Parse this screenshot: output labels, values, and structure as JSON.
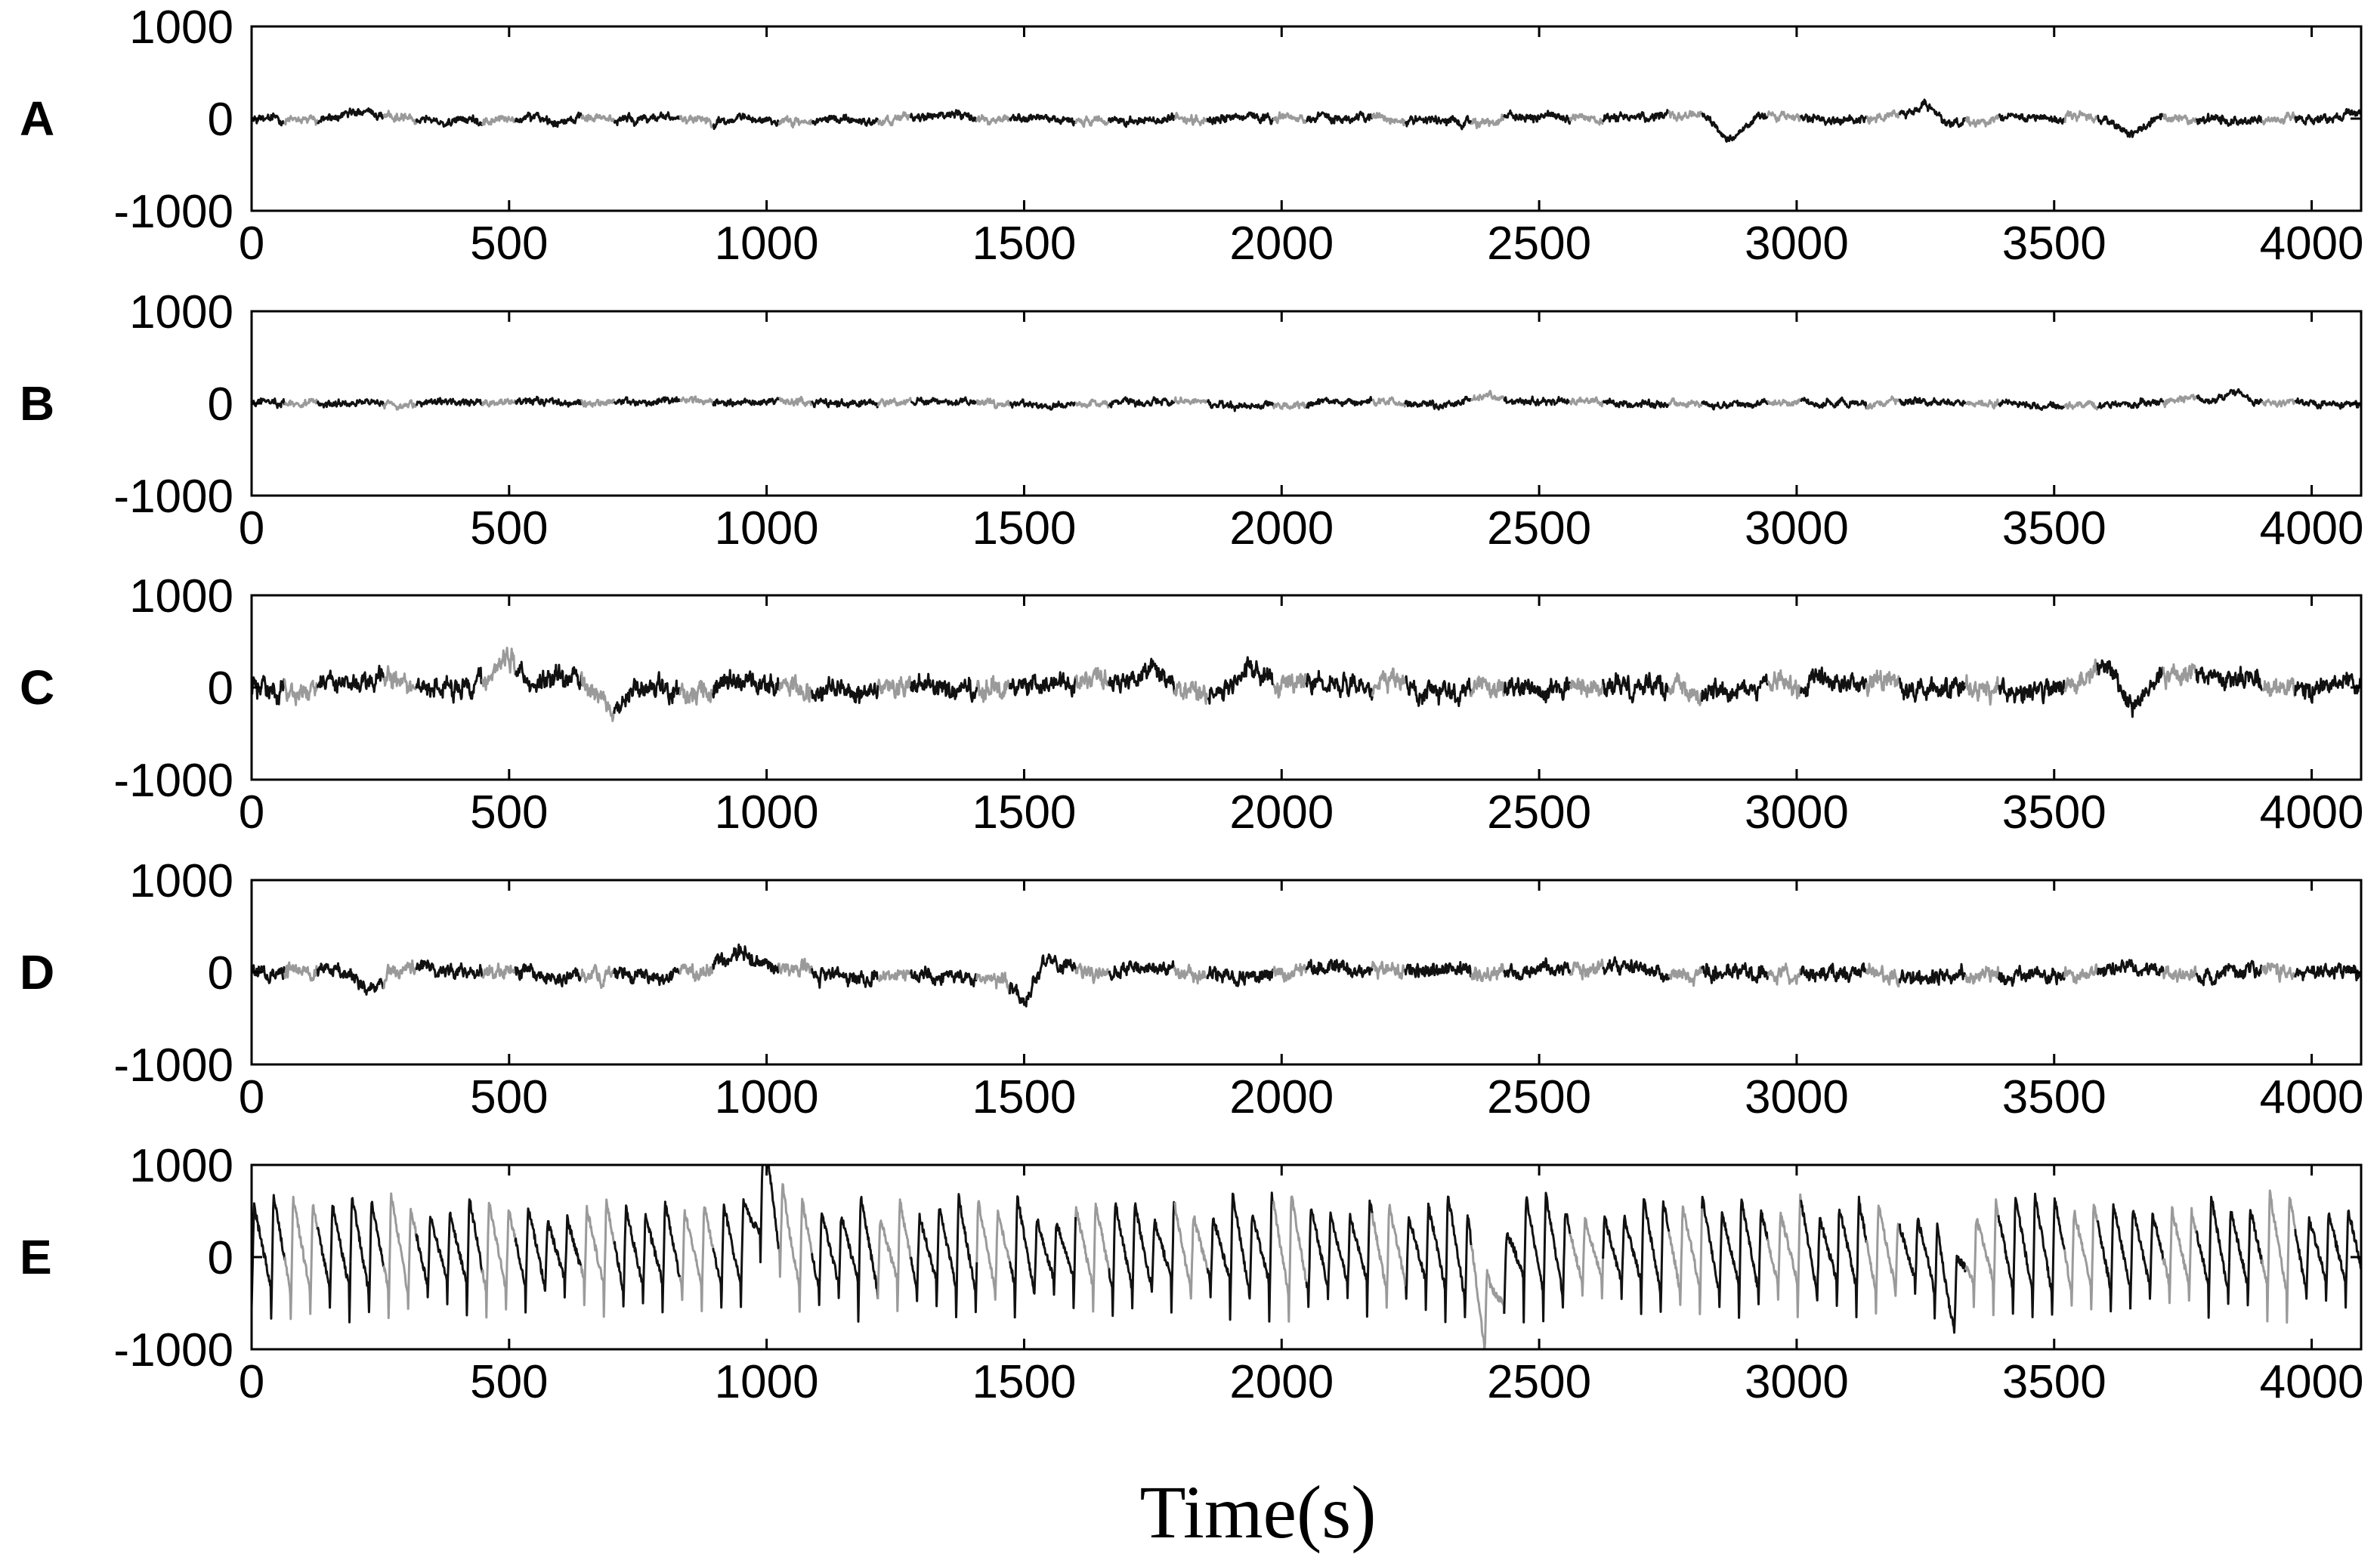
{
  "chart_data": [
    {
      "type": "line",
      "panel_label": "A",
      "xlim": [
        0,
        4096
      ],
      "ylim": [
        -1000,
        1000
      ],
      "xticks": [
        "0",
        "500",
        "1000",
        "1500",
        "2000",
        "2500",
        "3000",
        "3500",
        "4000"
      ],
      "yticks": [
        "1000",
        "0",
        "-1000"
      ],
      "amplitude_envelope": 150,
      "features": [
        {
          "x": 2870,
          "y": -200
        },
        {
          "x": 3250,
          "y": 150
        },
        {
          "x": 3650,
          "y": -180
        }
      ]
    },
    {
      "type": "line",
      "panel_label": "B",
      "xlim": [
        0,
        4096
      ],
      "ylim": [
        -1000,
        1000
      ],
      "xticks": [
        "0",
        "500",
        "1000",
        "1500",
        "2000",
        "2500",
        "3000",
        "3500",
        "4000"
      ],
      "yticks": [
        "1000",
        "0",
        "-1000"
      ],
      "amplitude_envelope": 120,
      "features": [
        {
          "x": 2400,
          "y": 100
        },
        {
          "x": 3850,
          "y": 100
        }
      ]
    },
    {
      "type": "line",
      "panel_label": "C",
      "xlim": [
        0,
        4096
      ],
      "ylim": [
        -1000,
        1000
      ],
      "xticks": [
        "0",
        "500",
        "1000",
        "1500",
        "2000",
        "2500",
        "3000",
        "3500",
        "4000"
      ],
      "yticks": [
        "1000",
        "0",
        "-1000"
      ],
      "amplitude_envelope": 350,
      "features": [
        {
          "x": 500,
          "y": 300
        },
        {
          "x": 700,
          "y": -350
        },
        {
          "x": 1750,
          "y": 300
        },
        {
          "x": 1940,
          "y": 280
        },
        {
          "x": 3600,
          "y": 250
        },
        {
          "x": 3650,
          "y": -200
        }
      ]
    },
    {
      "type": "line",
      "panel_label": "D",
      "xlim": [
        0,
        4096
      ],
      "ylim": [
        -1000,
        1000
      ],
      "xticks": [
        "0",
        "500",
        "1000",
        "1500",
        "2000",
        "2500",
        "3000",
        "3500",
        "4000"
      ],
      "yticks": [
        "1000",
        "0",
        "-1000"
      ],
      "amplitude_envelope": 250,
      "features": [
        {
          "x": 230,
          "y": -180
        },
        {
          "x": 950,
          "y": 180
        },
        {
          "x": 1500,
          "y": -330
        },
        {
          "x": 1540,
          "y": 160
        }
      ]
    },
    {
      "type": "line",
      "panel_label": "E",
      "xlim": [
        0,
        4096
      ],
      "ylim": [
        -1000,
        1000
      ],
      "xticks": [
        "0",
        "500",
        "1000",
        "1500",
        "2000",
        "2500",
        "3000",
        "3500",
        "4000"
      ],
      "yticks": [
        "1000",
        "0",
        "-1000"
      ],
      "amplitude_envelope": 700,
      "oscillation_period": 38,
      "features": [
        {
          "x": 1000,
          "y": 700
        },
        {
          "x": 2400,
          "y": -650
        },
        {
          "x": 3300,
          "y": -450
        }
      ]
    }
  ],
  "xlabel": "Time(s)",
  "colors": {
    "trace_dark": "#111111",
    "trace_light": "#9a9a9a",
    "axes": "#000000"
  }
}
